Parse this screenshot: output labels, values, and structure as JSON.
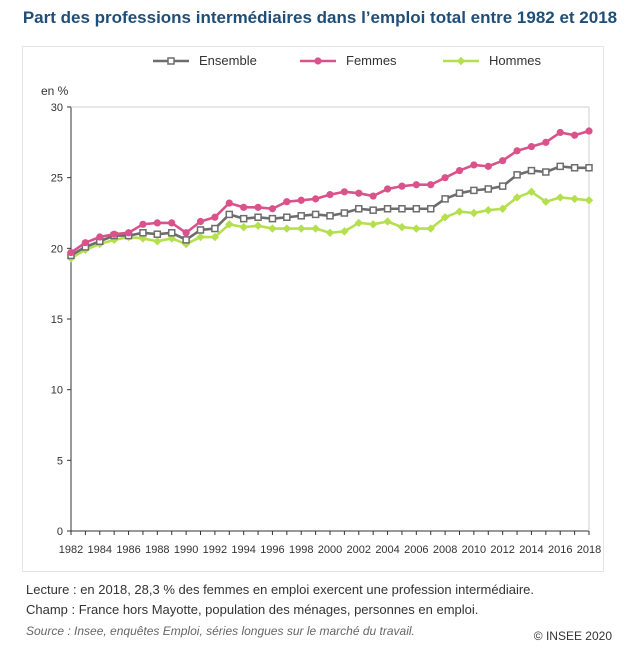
{
  "title": "Part des professions intermédiaires dans l’emploi total entre 1982 et 2018",
  "notes": {
    "lecture": "Lecture : en 2018, 28,3 % des femmes en emploi exercent une profession intermédiaire.",
    "champ": "Champ : France hors Mayotte, population des ménages, personnes en emploi.",
    "source": "Source : Insee, enquêtes Emploi, séries longues sur le marché du travail.",
    "copyright": "© INSEE 2020"
  },
  "chart_data": {
    "type": "line",
    "title": "Part des professions intermédiaires dans l’emploi total entre 1982 et 2018",
    "ylabel": "en %",
    "xlabel": "",
    "ylim": [
      0,
      30
    ],
    "yticks": [
      0,
      5,
      10,
      15,
      20,
      25,
      30
    ],
    "xlim": [
      1982,
      2018
    ],
    "xticks": [
      "1982",
      "1984",
      "1986",
      "1988",
      "1990",
      "1992",
      "1994",
      "1996",
      "1998",
      "2000",
      "2002",
      "2004",
      "2006",
      "2008",
      "2010",
      "2012",
      "2014",
      "2016",
      "2018"
    ],
    "grid": false,
    "legend_position": "top",
    "x": [
      1982,
      1983,
      1984,
      1985,
      1986,
      1987,
      1988,
      1989,
      1990,
      1991,
      1992,
      1993,
      1994,
      1995,
      1996,
      1997,
      1998,
      1999,
      2000,
      2001,
      2002,
      2003,
      2004,
      2005,
      2006,
      2007,
      2008,
      2009,
      2010,
      2011,
      2012,
      2013,
      2014,
      2015,
      2016,
      2017,
      2018
    ],
    "series": [
      {
        "name": "Ensemble",
        "color": "#6d6d6d",
        "marker": "square",
        "values": [
          19.5,
          20.1,
          20.5,
          20.9,
          20.9,
          21.1,
          21.0,
          21.1,
          20.6,
          21.3,
          21.4,
          22.4,
          22.1,
          22.2,
          22.1,
          22.2,
          22.3,
          22.4,
          22.3,
          22.5,
          22.8,
          22.7,
          22.8,
          22.8,
          22.8,
          22.8,
          23.5,
          23.9,
          24.1,
          24.2,
          24.4,
          25.2,
          25.5,
          25.4,
          25.8,
          25.7,
          25.7
        ]
      },
      {
        "name": "Femmes",
        "color": "#d9528b",
        "marker": "circle",
        "values": [
          19.7,
          20.4,
          20.8,
          21.0,
          21.1,
          21.7,
          21.8,
          21.8,
          21.1,
          21.9,
          22.2,
          23.2,
          22.9,
          22.9,
          22.8,
          23.3,
          23.4,
          23.5,
          23.8,
          24.0,
          23.9,
          23.7,
          24.2,
          24.4,
          24.5,
          24.5,
          25.0,
          25.5,
          25.9,
          25.8,
          26.2,
          26.9,
          27.2,
          27.5,
          28.2,
          28.0,
          28.3
        ]
      },
      {
        "name": "Hommes",
        "color": "#b5e04e",
        "marker": "diamond",
        "values": [
          19.3,
          19.9,
          20.3,
          20.6,
          20.8,
          20.7,
          20.5,
          20.7,
          20.3,
          20.8,
          20.8,
          21.7,
          21.5,
          21.6,
          21.4,
          21.4,
          21.4,
          21.4,
          21.1,
          21.2,
          21.8,
          21.7,
          21.9,
          21.5,
          21.4,
          21.4,
          22.2,
          22.6,
          22.5,
          22.7,
          22.8,
          23.6,
          24.0,
          23.3,
          23.6,
          23.5,
          23.4
        ]
      }
    ]
  }
}
